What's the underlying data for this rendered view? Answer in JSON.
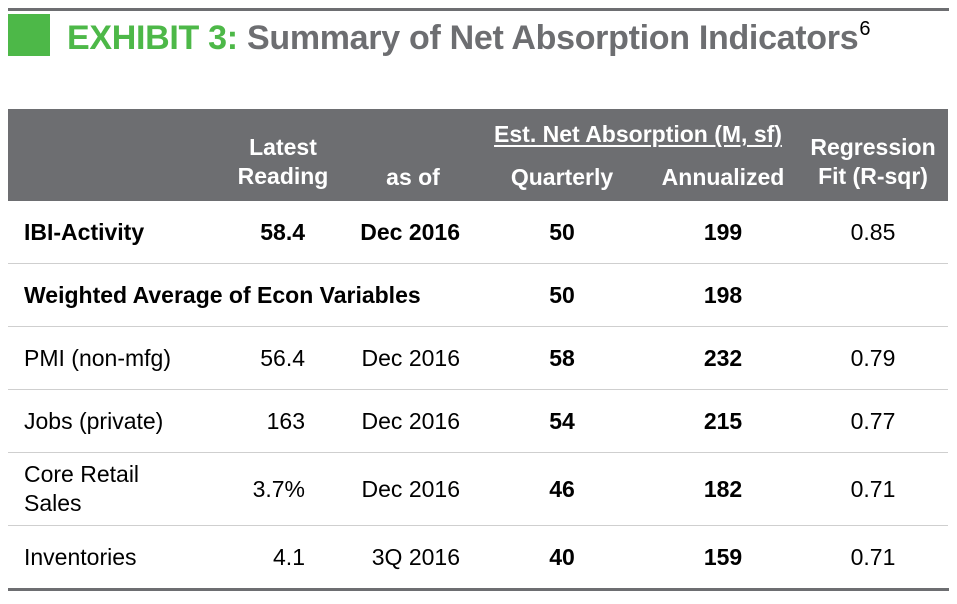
{
  "title": {
    "exhibit": "EXHIBIT 3:",
    "text": "Summary of Net Absorption Indicators",
    "footnote": "6"
  },
  "header": {
    "latest_reading": "Latest\nReading",
    "as_of": "as of",
    "group": "Est. Net Absorption (M, sf)",
    "quarterly": "Quarterly",
    "annualized": "Annualized",
    "regression": "Regression\nFit (R-sqr)"
  },
  "rows": [
    {
      "name": "IBI-Activity",
      "reading": "58.4",
      "as_of": "Dec 2016",
      "quarterly": "50",
      "annualized": "199",
      "r_sqr": "0.85"
    },
    {
      "name": "Weighted Average of Econ Variables",
      "reading": "",
      "as_of": "",
      "quarterly": "50",
      "annualized": "198",
      "r_sqr": ""
    },
    {
      "name": "PMI (non-mfg)",
      "reading": "56.4",
      "as_of": "Dec 2016",
      "quarterly": "58",
      "annualized": "232",
      "r_sqr": "0.79"
    },
    {
      "name": "Jobs (private)",
      "reading": "163",
      "as_of": "Dec 2016",
      "quarterly": "54",
      "annualized": "215",
      "r_sqr": "0.77"
    },
    {
      "name": "Core Retail Sales",
      "reading": "3.7%",
      "as_of": "Dec 2016",
      "quarterly": "46",
      "annualized": "182",
      "r_sqr": "0.71"
    },
    {
      "name": "Inventories",
      "reading": "4.1",
      "as_of": "3Q 2016",
      "quarterly": "40",
      "annualized": "159",
      "r_sqr": "0.71"
    }
  ],
  "colors": {
    "accent_green": "#4db848",
    "header_gray": "#6d6e71"
  }
}
